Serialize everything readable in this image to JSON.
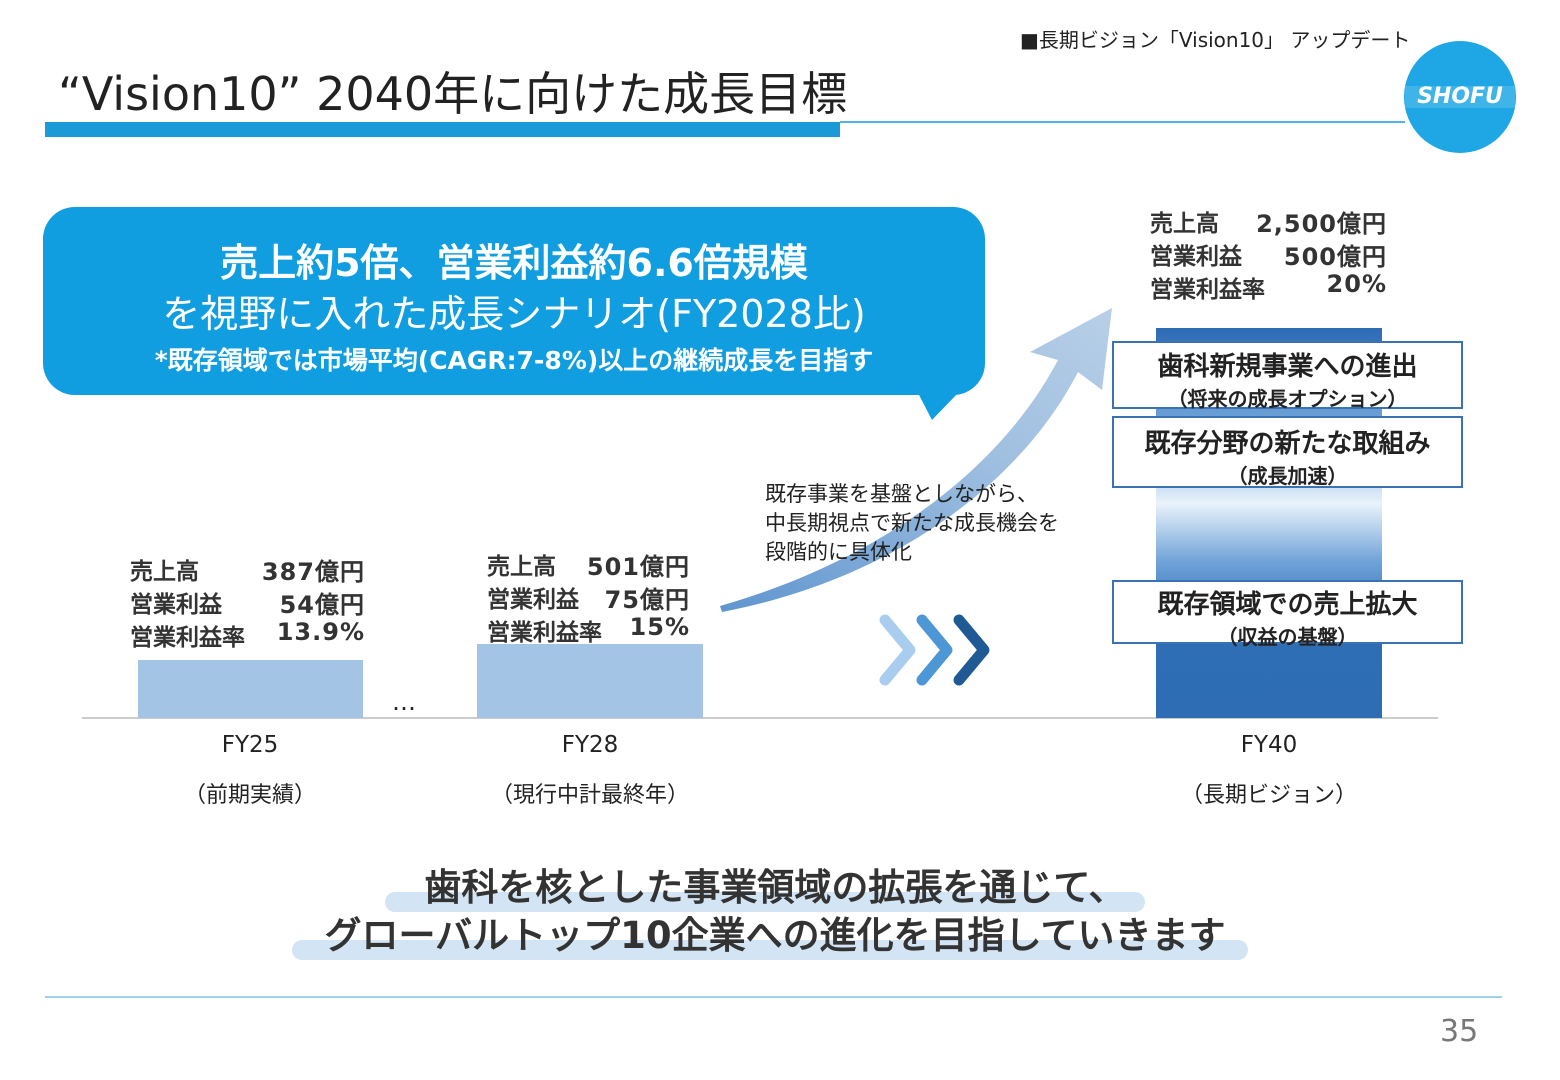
{
  "header": {
    "section": "■長期ビジョン「Vision10」 アップデート",
    "title": "“Vision10” 2040年に向けた成長目標",
    "logo": "SHOFU"
  },
  "callout": {
    "line1": "売上約5倍、営業利益約6.6倍規模",
    "line2": "を視野に入れた成長シナリオ(FY2028比)",
    "note": "*既存領域では市場平均(CAGR:7-8%)以上の継続成長を目指す"
  },
  "columns": [
    {
      "label": "FY25",
      "sublabel": "（前期実績）",
      "metrics": [
        [
          "売上高",
          "387億円"
        ],
        [
          "営業利益",
          "54億円"
        ],
        [
          "営業利益率",
          "13.9%"
        ]
      ]
    },
    {
      "label": "FY28",
      "sublabel": "（現行中計最終年）",
      "metrics": [
        [
          "売上高",
          "501億円"
        ],
        [
          "営業利益",
          "75億円"
        ],
        [
          "営業利益率",
          "15%"
        ]
      ]
    },
    {
      "label": "FY40",
      "sublabel": "（長期ビジョン）",
      "metrics": [
        [
          "売上高",
          "2,500億円"
        ],
        [
          "営業利益",
          "500億円"
        ],
        [
          "営業利益率",
          "20%"
        ]
      ]
    }
  ],
  "ellipsis": "…",
  "arrow_text": [
    "既存事業を基盤としながら、",
    "中長期視点で新たな成長機会を",
    "段階的に具体化"
  ],
  "fy40_boxes": [
    {
      "title": "歯科新規事業への進出",
      "sub": "（将来の成長オプション）"
    },
    {
      "title": "既存分野の新たな取組み",
      "sub": "（成長加速）"
    },
    {
      "title": "既存領域での売上拡大",
      "sub": "（収益の基盤）"
    }
  ],
  "message": [
    "歯科を核とした事業領域の拡張を通じて、",
    "グローバルトップ10企業への進化を目指していきます"
  ],
  "page_number": "35"
}
